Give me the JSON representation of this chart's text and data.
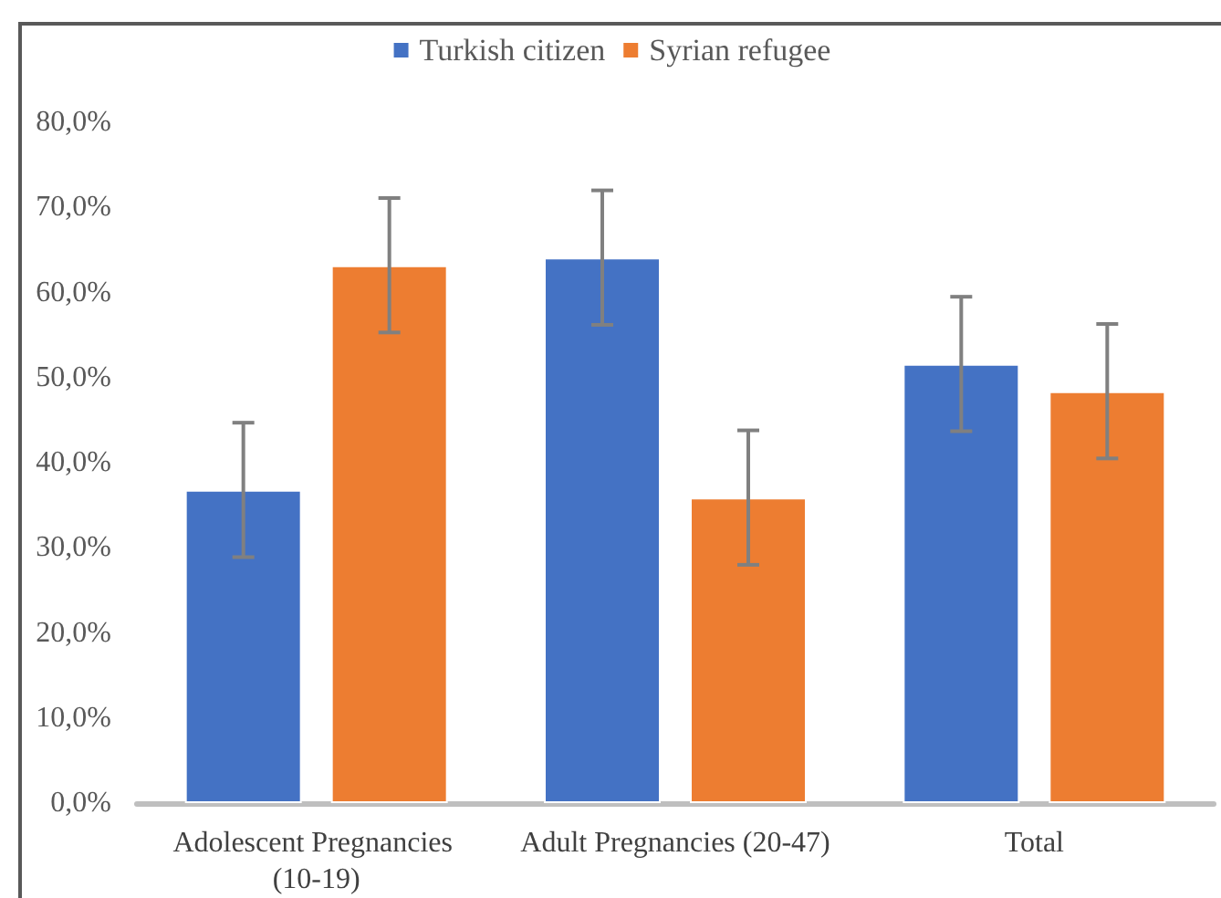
{
  "chart_data": {
    "type": "bar",
    "categories": [
      "Adolescent Pregnancies (10-19)",
      "Adult Pregnancies (20-47)",
      "Total"
    ],
    "series": [
      {
        "name": "Turkish citizen",
        "color": "#4472c4",
        "values": [
          36.8,
          64.1,
          51.6
        ],
        "errors": [
          7.9,
          7.9,
          7.9
        ]
      },
      {
        "name": "Syrian refugee",
        "color": "#ed7d31",
        "values": [
          63.2,
          35.9,
          48.4
        ],
        "errors": [
          7.9,
          7.9,
          7.9
        ]
      }
    ],
    "ylim": [
      0,
      80
    ],
    "yticks": [
      {
        "value": 0,
        "label": "0,0%"
      },
      {
        "value": 10,
        "label": "10,0%"
      },
      {
        "value": 20,
        "label": "20,0%"
      },
      {
        "value": 30,
        "label": "30,0%"
      },
      {
        "value": 40,
        "label": "40,0%"
      },
      {
        "value": 50,
        "label": "50,0%"
      },
      {
        "value": 60,
        "label": "60,0%"
      },
      {
        "value": 70,
        "label": "70,0%"
      },
      {
        "value": 80,
        "label": "80,0%"
      }
    ],
    "grid": false,
    "legend": "top"
  }
}
